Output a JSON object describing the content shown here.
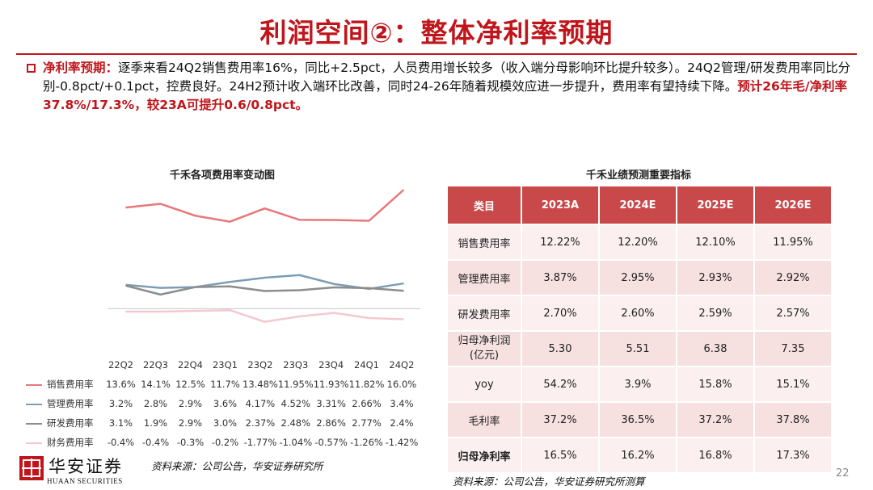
{
  "title": "利润空间②：整体净利率预期",
  "paragraph": {
    "lead": "净利率预期：",
    "body": "逐季来看24Q2销售费用率16%，同比+2.5pct，人员费用增长较多（收入端分母影响环比提升较多）。24Q2管理/研发费用率同比分别-0.8pct/+0.1pct，控费良好。24H2预计收入端环比改善，同时24-26年随着规模效应进一步提升，费用率有望持续下降。",
    "highlight": "预计26年毛/净利率37.8%/17.3%，较23A可提升0.6/0.8pct。"
  },
  "chart_data": {
    "type": "line",
    "title": "千禾各项费用率变动图",
    "categories": [
      "22Q2",
      "22Q3",
      "22Q4",
      "23Q1",
      "23Q2",
      "23Q3",
      "23Q4",
      "24Q1",
      "24Q2"
    ],
    "series": [
      {
        "name": "销售费用率",
        "color": "#e8777b",
        "values": [
          13.6,
          14.1,
          12.5,
          11.7,
          13.48,
          11.95,
          11.93,
          11.82,
          16.0
        ],
        "labels": [
          "13.6%",
          "14.1%",
          "12.5%",
          "11.7%",
          "13.48%",
          "11.95%",
          "11.93%",
          "11.82%",
          "16.0%"
        ]
      },
      {
        "name": "管理费用率",
        "color": "#7d9db5",
        "values": [
          3.2,
          2.8,
          2.9,
          3.6,
          4.17,
          4.52,
          3.31,
          2.66,
          3.4
        ],
        "labels": [
          "3.2%",
          "2.8%",
          "2.9%",
          "3.6%",
          "4.17%",
          "4.52%",
          "3.31%",
          "2.66%",
          "3.4%"
        ]
      },
      {
        "name": "研发费用率",
        "color": "#8c8c8c",
        "values": [
          3.1,
          1.9,
          2.9,
          3.0,
          2.37,
          2.48,
          2.86,
          2.77,
          2.4
        ],
        "labels": [
          "3.1%",
          "1.9%",
          "2.9%",
          "3.0%",
          "2.37%",
          "2.48%",
          "2.86%",
          "2.77%",
          "2.4%"
        ]
      },
      {
        "name": "财务费用率",
        "color": "#f2c9cf",
        "values": [
          -0.4,
          -0.4,
          -0.3,
          -0.2,
          -1.77,
          -1.04,
          -0.57,
          -1.26,
          -1.42
        ],
        "labels": [
          "-0.4%",
          "-0.4%",
          "-0.3%",
          "-0.2%",
          "-1.77%",
          "-1.04%",
          "-0.57%",
          "-1.26%",
          "-1.42%"
        ]
      }
    ],
    "ylim": [
      -3,
      16
    ],
    "legend": "bottom-table"
  },
  "table": {
    "title": "千禾业绩预测重要指标",
    "headers": [
      "类目",
      "2023A",
      "2024E",
      "2025E",
      "2026E"
    ],
    "rows": [
      {
        "label": "销售费用率",
        "values": [
          "12.22%",
          "12.20%",
          "12.10%",
          "11.95%"
        ]
      },
      {
        "label": "管理费用率",
        "values": [
          "3.87%",
          "2.95%",
          "2.93%",
          "2.92%"
        ]
      },
      {
        "label": "研发费用率",
        "values": [
          "2.70%",
          "2.60%",
          "2.59%",
          "2.57%"
        ]
      },
      {
        "label": "归母净利润(亿元)",
        "label_line1": "归母净利润",
        "label_line2": "(亿元)",
        "values": [
          "5.30",
          "5.51",
          "6.38",
          "7.35"
        ]
      },
      {
        "label": "yoy",
        "values": [
          "54.2%",
          "3.9%",
          "15.8%",
          "15.1%"
        ]
      },
      {
        "label": "毛利率",
        "values": [
          "37.2%",
          "36.5%",
          "37.2%",
          "37.8%"
        ]
      },
      {
        "label": "归母净利率",
        "values": [
          "16.5%",
          "16.2%",
          "16.8%",
          "17.3%"
        ],
        "bold": true
      }
    ]
  },
  "footer": {
    "logo_cn": "华安证券",
    "logo_en": "HUAAN SECURITIES",
    "source_left": "资料来源：公司公告，华安证券研究所",
    "source_right": "资料来源：公司公告，华安证券研究所测算",
    "page": "22"
  },
  "colors": {
    "brand": "#c0161b",
    "header": "#c9494b"
  }
}
